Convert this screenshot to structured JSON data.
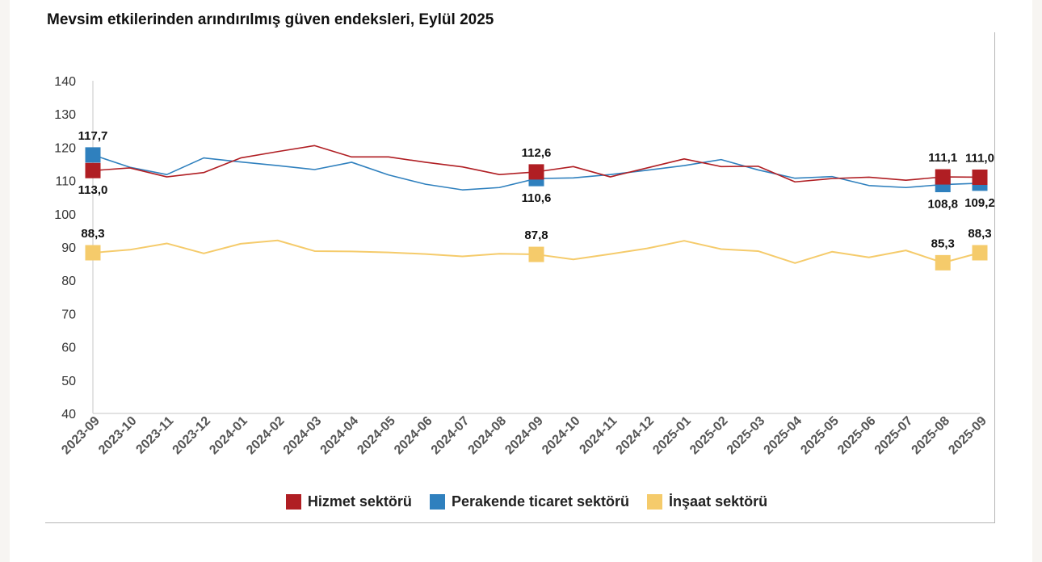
{
  "title": "Mevsim etkilerinden arındırılmış güven endeksleri, Eylül 2025",
  "legend": [
    {
      "label": "Hizmet sektörü",
      "color": "#b01e23"
    },
    {
      "label": "Perakende ticaret sektörü",
      "color": "#2f80be"
    },
    {
      "label": "İnşaat sektörü",
      "color": "#f5cb6b"
    }
  ],
  "chart_data": {
    "type": "line",
    "ylim": [
      40,
      140
    ],
    "yticks": [
      40,
      50,
      60,
      70,
      80,
      90,
      100,
      110,
      120,
      130,
      140
    ],
    "grid": false,
    "legend_position": "bottom",
    "x": [
      "2023-09",
      "2023-10",
      "2023-11",
      "2023-12",
      "2024-01",
      "2024-02",
      "2024-03",
      "2024-04",
      "2024-05",
      "2024-06",
      "2024-07",
      "2024-08",
      "2024-09",
      "2024-10",
      "2024-11",
      "2024-12",
      "2025-01",
      "2025-02",
      "2025-03",
      "2025-04",
      "2025-05",
      "2025-06",
      "2025-07",
      "2025-08",
      "2025-09"
    ],
    "series": [
      {
        "name": "Hizmet sektörü",
        "color": "#b01e23",
        "values": [
          113.0,
          113.8,
          111.1,
          112.4,
          116.8,
          118.7,
          120.5,
          117.1,
          117.1,
          115.5,
          114.1,
          111.8,
          112.6,
          114.2,
          111.1,
          113.8,
          116.5,
          114.2,
          114.3,
          109.6,
          110.6,
          111.0,
          110.1,
          111.1,
          111.0
        ],
        "markers": [
          0,
          12,
          23,
          24
        ],
        "labels": [
          {
            "index": 0,
            "text": "113,0",
            "pos": "below"
          },
          {
            "index": 12,
            "text": "112,6",
            "pos": "above"
          },
          {
            "index": 23,
            "text": "111,1",
            "pos": "above"
          },
          {
            "index": 24,
            "text": "111,0",
            "pos": "above"
          }
        ]
      },
      {
        "name": "Perakende ticaret sektörü",
        "color": "#2f80be",
        "values": [
          117.7,
          114.0,
          111.8,
          116.8,
          115.6,
          114.5,
          113.3,
          115.5,
          111.7,
          108.9,
          107.2,
          107.9,
          110.6,
          110.8,
          111.8,
          113.1,
          114.5,
          116.3,
          113.2,
          110.7,
          111.2,
          108.5,
          107.9,
          108.8,
          109.2
        ],
        "markers": [
          0,
          12,
          23,
          24
        ],
        "labels": [
          {
            "index": 0,
            "text": "117,7",
            "pos": "above"
          },
          {
            "index": 12,
            "text": "110,6",
            "pos": "below"
          },
          {
            "index": 23,
            "text": "108,8",
            "pos": "below"
          },
          {
            "index": 24,
            "text": "109,2",
            "pos": "below"
          }
        ]
      },
      {
        "name": "İnşaat sektörü",
        "color": "#f5cb6b",
        "values": [
          88.3,
          89.2,
          91.1,
          88.1,
          91.0,
          92.0,
          88.8,
          88.7,
          88.4,
          87.9,
          87.2,
          88.0,
          87.8,
          86.3,
          87.9,
          89.6,
          91.9,
          89.4,
          88.8,
          85.2,
          88.6,
          86.9,
          89.0,
          85.3,
          88.3
        ],
        "markers": [
          0,
          12,
          23,
          24
        ],
        "labels": [
          {
            "index": 0,
            "text": "88,3",
            "pos": "above"
          },
          {
            "index": 12,
            "text": "87,8",
            "pos": "above"
          },
          {
            "index": 23,
            "text": "85,3",
            "pos": "above"
          },
          {
            "index": 24,
            "text": "88,3",
            "pos": "above"
          }
        ]
      }
    ]
  }
}
